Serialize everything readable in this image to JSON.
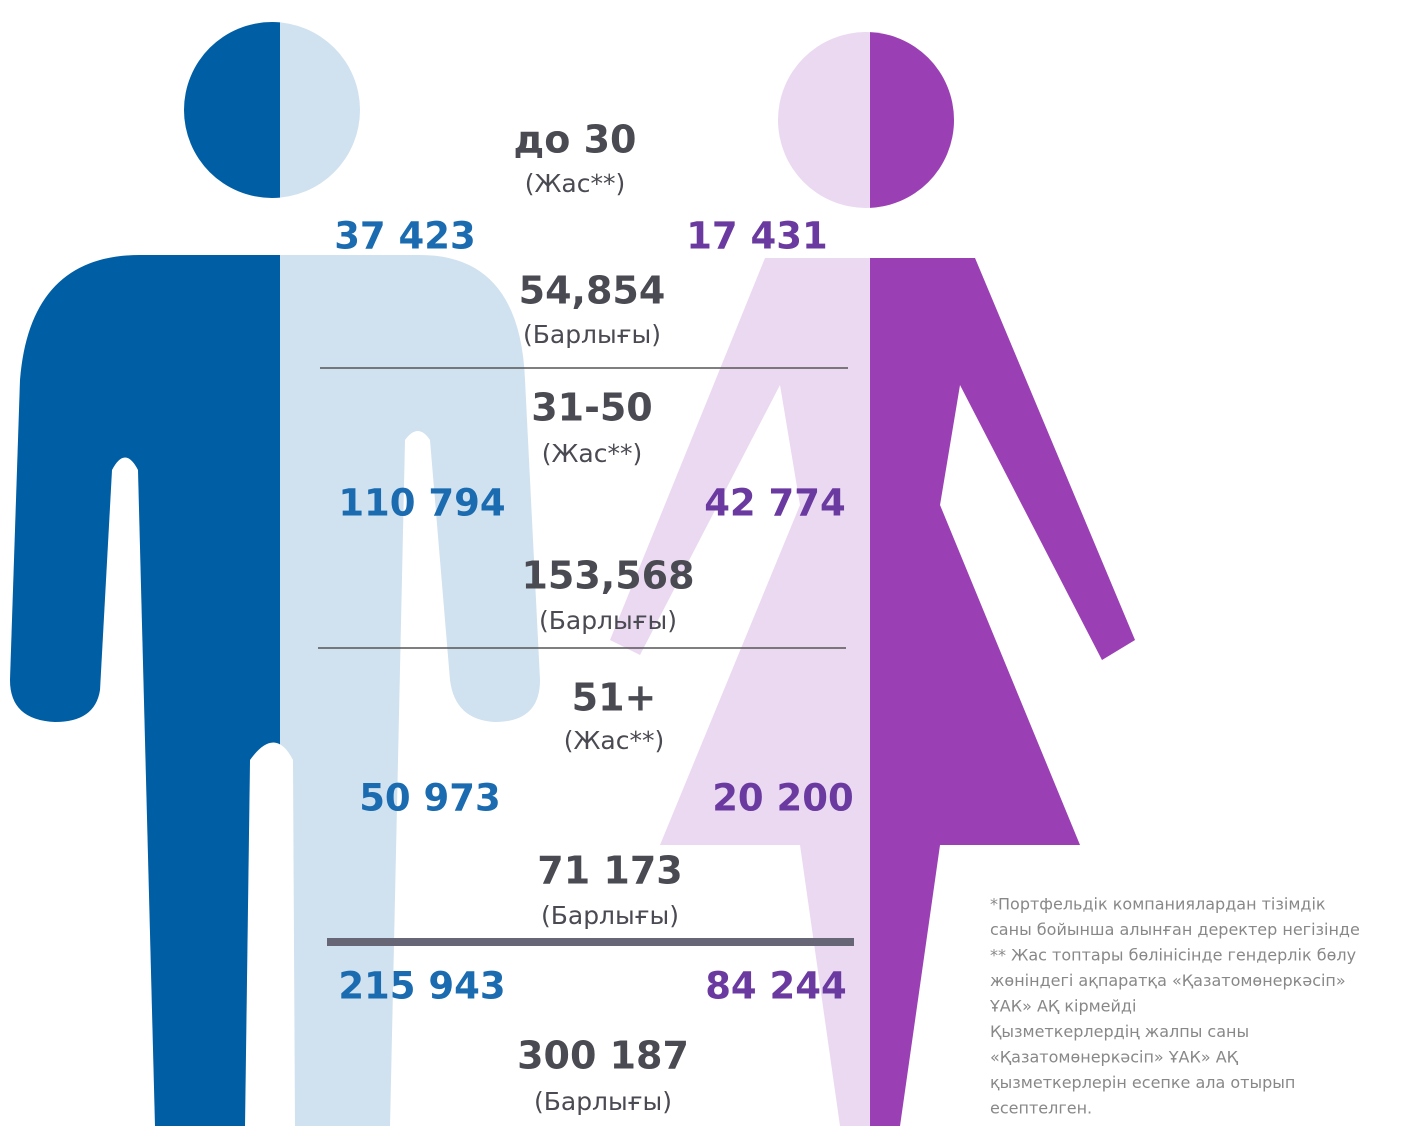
{
  "groups": [
    {
      "age": "до 30",
      "age_note": "(Жас**)",
      "male": "37 423",
      "female": "17 431",
      "total": "54,854",
      "total_note": "(Барлығы)"
    },
    {
      "age": "31-50",
      "age_note": "(Жас**)",
      "male": "110 794",
      "female": "42 774",
      "total": "153,568",
      "total_note": "(Барлығы)"
    },
    {
      "age": "51+",
      "age_note": "(Жас**)",
      "male": "50 973",
      "female": "20 200",
      "total": "71 173",
      "total_note": "(Барлығы)"
    }
  ],
  "overall": {
    "male": "215 943",
    "female": "84 244",
    "total": "300 187",
    "total_note": "(Барлығы)"
  },
  "footnote": [
    "*Портфельдік компаниялардан тізімдік",
    "саны бойынша алынған деректер негізінде",
    "** Жас топтары бөлінісінде гендерлік бөлу",
    "жөніндегі ақпаратқа «Қазатомөнеркәсіп»",
    "ҰАК» АҚ кірмейді",
    "Қызметкерлердің жалпы саны",
    "«Қазатомөнеркәсіп» ҰАК» АҚ",
    "қызметкерлерін есепке ала отырып",
    "есептелген."
  ]
}
